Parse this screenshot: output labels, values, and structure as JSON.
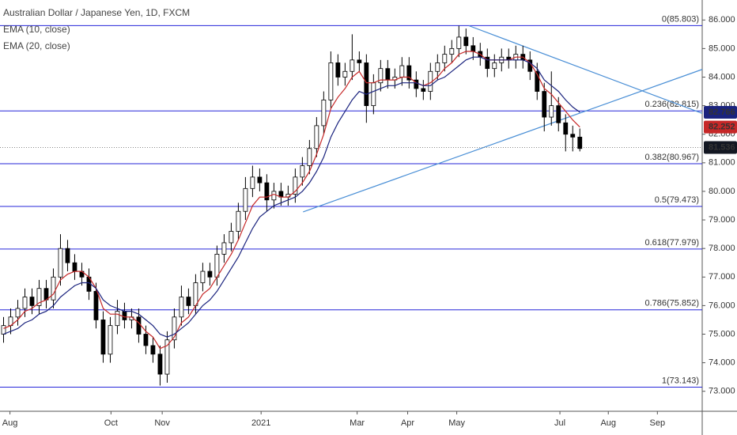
{
  "chart_data": {
    "type": "candlestick",
    "title": "Australian Dollar / Japanese Yen, 1D, FXCM",
    "indicators": [
      "EMA (10, close)",
      "EMA (20, close)"
    ],
    "open": [
      75.0,
      75.3,
      75.6,
      75.9,
      76.3,
      76.0,
      76.6,
      76.2,
      77.0,
      78.0,
      77.5,
      77.2,
      77.0,
      76.5,
      75.5,
      74.3,
      75.3,
      75.8,
      75.5,
      75.6,
      75.0,
      74.6,
      74.3,
      73.6,
      74.8,
      75.6,
      76.3,
      76.0,
      76.8,
      77.2,
      77.0,
      77.8,
      78.2,
      78.6,
      79.3,
      80.1,
      80.5,
      80.3,
      79.7,
      80.0,
      79.8,
      79.9,
      80.5,
      80.9,
      81.5,
      82.3,
      83.2,
      84.5,
      84.0,
      84.2,
      84.6,
      84.5,
      83.0,
      83.8,
      84.3,
      83.9,
      84.0,
      84.4,
      83.9,
      83.6,
      83.5,
      84.2,
      84.5,
      84.8,
      85.0,
      85.4,
      85.1,
      84.9,
      84.7,
      84.3,
      84.5,
      84.7,
      84.6,
      84.8,
      84.6,
      84.2,
      83.5,
      82.6,
      83.0,
      82.4,
      82.0,
      81.9
    ],
    "high": [
      75.6,
      75.9,
      76.2,
      76.6,
      76.6,
      76.9,
      76.9,
      77.3,
      78.5,
      78.3,
      77.8,
      77.5,
      77.3,
      76.8,
      75.8,
      75.6,
      76.2,
      76.1,
      75.9,
      75.9,
      75.3,
      74.9,
      74.6,
      75.1,
      75.9,
      76.7,
      76.6,
      77.1,
      77.5,
      77.5,
      78.1,
      78.5,
      78.9,
      79.6,
      80.5,
      80.9,
      80.8,
      80.6,
      80.3,
      80.3,
      80.2,
      80.8,
      81.2,
      81.8,
      82.6,
      83.5,
      84.9,
      84.8,
      84.5,
      85.5,
      84.9,
      84.8,
      84.1,
      84.6,
      84.6,
      84.3,
      84.7,
      84.7,
      84.2,
      83.9,
      84.5,
      84.8,
      85.1,
      85.3,
      85.8,
      85.7,
      85.4,
      85.2,
      85.0,
      84.8,
      85.0,
      85.0,
      85.1,
      85.1,
      84.9,
      84.5,
      83.8,
      84.2,
      83.3,
      82.7,
      82.3,
      82.2
    ],
    "low": [
      74.7,
      75.0,
      75.3,
      75.6,
      75.7,
      75.7,
      75.9,
      75.9,
      76.7,
      77.2,
      76.9,
      76.7,
      76.2,
      75.2,
      74.0,
      74.0,
      75.0,
      75.2,
      75.2,
      74.7,
      74.3,
      74.0,
      73.2,
      73.3,
      74.5,
      75.3,
      75.7,
      75.7,
      76.5,
      76.7,
      76.7,
      77.5,
      77.9,
      78.3,
      79.0,
      79.8,
      80.0,
      79.3,
      79.4,
      79.5,
      79.5,
      79.6,
      80.2,
      80.6,
      81.2,
      82.0,
      82.9,
      83.7,
      83.7,
      83.9,
      84.2,
      82.4,
      82.7,
      83.5,
      83.6,
      83.6,
      83.7,
      83.6,
      83.3,
      83.2,
      83.2,
      83.9,
      84.2,
      84.5,
      84.7,
      84.8,
      84.6,
      84.4,
      84.0,
      84.0,
      84.2,
      84.3,
      84.3,
      84.3,
      83.9,
      83.2,
      82.1,
      82.3,
      82.1,
      81.4,
      81.4,
      81.4
    ],
    "close": [
      75.3,
      75.6,
      75.9,
      76.3,
      76.0,
      76.6,
      76.2,
      77.0,
      78.0,
      77.5,
      77.2,
      77.0,
      76.5,
      75.5,
      74.3,
      75.3,
      75.8,
      75.5,
      75.6,
      75.0,
      74.6,
      74.3,
      73.6,
      74.8,
      75.6,
      76.3,
      76.0,
      76.8,
      77.2,
      77.0,
      77.8,
      78.2,
      78.6,
      79.3,
      80.1,
      80.5,
      80.3,
      79.7,
      80.0,
      79.8,
      79.9,
      80.5,
      80.9,
      81.5,
      82.3,
      83.2,
      84.5,
      84.0,
      84.2,
      84.6,
      84.5,
      83.0,
      83.8,
      84.3,
      83.9,
      84.0,
      84.4,
      83.9,
      83.6,
      83.5,
      84.2,
      84.5,
      84.8,
      85.0,
      85.4,
      85.1,
      84.9,
      84.7,
      84.3,
      84.5,
      84.7,
      84.6,
      84.8,
      84.6,
      84.2,
      83.5,
      82.6,
      83.0,
      82.4,
      82.0,
      81.9,
      81.5
    ],
    "series": [
      {
        "name": "EMA (10, close)",
        "color": "#c62828",
        "values": [
          75.2,
          75.3,
          75.5,
          75.8,
          75.9,
          76.1,
          76.2,
          76.4,
          76.9,
          77.1,
          77.2,
          77.2,
          77.0,
          76.6,
          75.9,
          75.7,
          75.7,
          75.6,
          75.6,
          75.4,
          75.1,
          74.9,
          74.5,
          74.6,
          74.9,
          75.4,
          75.6,
          76.0,
          76.4,
          76.6,
          77.0,
          77.4,
          77.8,
          78.3,
          78.9,
          79.5,
          79.8,
          79.8,
          79.9,
          79.8,
          79.8,
          80.0,
          80.3,
          80.7,
          81.3,
          82.0,
          82.9,
          83.3,
          83.6,
          84.0,
          84.2,
          83.8,
          83.8,
          83.9,
          83.9,
          83.9,
          84.0,
          84.0,
          83.8,
          83.7,
          83.8,
          84.0,
          84.3,
          84.5,
          84.8,
          84.9,
          84.9,
          84.8,
          84.6,
          84.6,
          84.6,
          84.6,
          84.7,
          84.7,
          84.5,
          84.1,
          83.6,
          83.4,
          83.1,
          82.8,
          82.5,
          82.25
        ]
      },
      {
        "name": "EMA (20, close)",
        "color": "#1a237e",
        "values": [
          75.0,
          75.1,
          75.2,
          75.4,
          75.5,
          75.7,
          75.8,
          76.0,
          76.3,
          76.5,
          76.7,
          76.8,
          76.8,
          76.6,
          76.2,
          76.0,
          75.9,
          75.8,
          75.8,
          75.7,
          75.5,
          75.3,
          75.0,
          74.9,
          75.0,
          75.2,
          75.4,
          75.7,
          76.0,
          76.2,
          76.5,
          76.9,
          77.3,
          77.7,
          78.2,
          78.7,
          79.1,
          79.3,
          79.5,
          79.6,
          79.7,
          79.8,
          80.0,
          80.3,
          80.7,
          81.2,
          81.9,
          82.4,
          82.8,
          83.2,
          83.5,
          83.4,
          83.5,
          83.6,
          83.7,
          83.7,
          83.8,
          83.8,
          83.8,
          83.7,
          83.7,
          83.9,
          84.0,
          84.2,
          84.4,
          84.6,
          84.7,
          84.7,
          84.6,
          84.6,
          84.6,
          84.6,
          84.6,
          84.6,
          84.5,
          84.3,
          83.9,
          83.7,
          83.5,
          83.2,
          82.95,
          82.77
        ]
      }
    ],
    "xlim": [
      -0.5,
      98.2
    ],
    "xticks": [
      {
        "value": 0.9,
        "label": "Aug"
      },
      {
        "value": 15.1,
        "label": "Oct"
      },
      {
        "value": 22.3,
        "label": "Nov"
      },
      {
        "value": 36.2,
        "label": "2021"
      },
      {
        "value": 49.7,
        "label": "Mar"
      },
      {
        "value": 56.8,
        "label": "Apr"
      },
      {
        "value": 63.7,
        "label": "May"
      },
      {
        "value": 78.2,
        "label": "Jul"
      },
      {
        "value": 85,
        "label": "Aug"
      },
      {
        "value": 91.9,
        "label": "Sep"
      }
    ],
    "ylim": [
      72.3,
      86.7
    ],
    "yticks": [
      {
        "value": 73,
        "label": "73.000"
      },
      {
        "value": 74,
        "label": "74.000"
      },
      {
        "value": 75,
        "label": "75.000"
      },
      {
        "value": 76,
        "label": "76.000"
      },
      {
        "value": 77,
        "label": "77.000"
      },
      {
        "value": 78,
        "label": "78.000"
      },
      {
        "value": 79,
        "label": "79.000"
      },
      {
        "value": 80,
        "label": "80.000"
      },
      {
        "value": 81,
        "label": "81.000"
      },
      {
        "value": 82,
        "label": "82.000"
      },
      {
        "value": 83,
        "label": "83.000"
      },
      {
        "value": 84,
        "label": "84.000"
      },
      {
        "value": 85,
        "label": "85.000"
      },
      {
        "value": 86,
        "label": "86.000"
      }
    ],
    "fib_levels": [
      {
        "value": 85.803,
        "label": "0(85.803)"
      },
      {
        "value": 82.815,
        "label": "0.236(82.815)"
      },
      {
        "value": 80.967,
        "label": "0.382(80.967)"
      },
      {
        "value": 79.473,
        "label": "0.5(79.473)"
      },
      {
        "value": 77.979,
        "label": "0.618(77.979)"
      },
      {
        "value": 75.852,
        "label": "0.786(75.852)"
      },
      {
        "value": 73.143,
        "label": "1(73.143)"
      }
    ],
    "fib_color": "#2626d9",
    "trendlines": [
      {
        "color": "#4a8fd6",
        "points": [
          [
            65.4,
            85.8
          ],
          [
            98.2,
            82.73
          ]
        ]
      },
      {
        "color": "#4a8fd6",
        "points": [
          [
            42.1,
            79.28
          ],
          [
            98.2,
            84.27
          ]
        ]
      }
    ],
    "price_labels": [
      {
        "value": 82.766,
        "label": "82.766",
        "color": "#1a237e"
      },
      {
        "value": 82.252,
        "label": "82.252",
        "color": "#c62828"
      },
      {
        "value": 81.536,
        "label": "81.536",
        "color": "#131722"
      }
    ]
  }
}
